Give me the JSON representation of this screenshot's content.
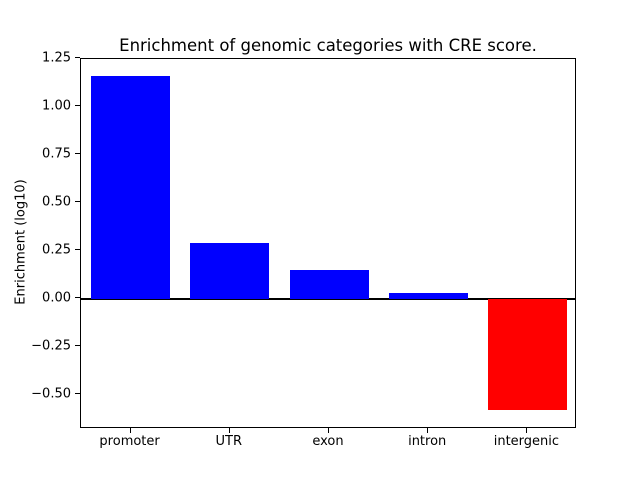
{
  "chart_data": {
    "type": "bar",
    "title": "Enrichment of genomic categories with CRE score.",
    "xlabel": "",
    "ylabel": "Enrichment (log10)",
    "categories": [
      "promoter",
      "UTR",
      "exon",
      "intron",
      "intergenic"
    ],
    "values": [
      1.16,
      0.29,
      0.15,
      0.03,
      -0.58
    ],
    "bar_colors": [
      "#0000ff",
      "#0000ff",
      "#0000ff",
      "#0000ff",
      "#ff0000"
    ],
    "positive_color": "#0000ff",
    "negative_color": "#ff0000",
    "ylim": [
      -0.675,
      1.25
    ],
    "yticks": [
      1.25,
      1.0,
      0.75,
      0.5,
      0.25,
      0.0,
      -0.25,
      -0.5
    ],
    "ytick_labels": [
      "1.25",
      "1.00",
      "0.75",
      "0.50",
      "0.25",
      "0.00",
      "−0.25",
      "−0.50"
    ],
    "zero_line": true,
    "grid": false,
    "legend": null,
    "bar_width_fraction": 0.8,
    "background_color": "#ffffff",
    "axis_color": "#000000"
  }
}
